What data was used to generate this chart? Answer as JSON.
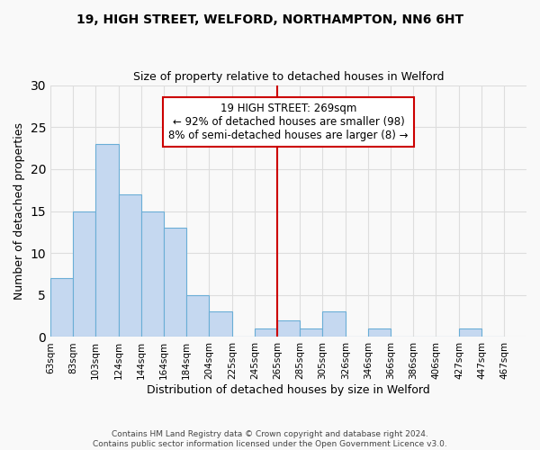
{
  "title1": "19, HIGH STREET, WELFORD, NORTHAMPTON, NN6 6HT",
  "title2": "Size of property relative to detached houses in Welford",
  "xlabel": "Distribution of detached houses by size in Welford",
  "ylabel": "Number of detached properties",
  "footer1": "Contains HM Land Registry data © Crown copyright and database right 2024.",
  "footer2": "Contains public sector information licensed under the Open Government Licence v3.0.",
  "bin_labels": [
    "63sqm",
    "83sqm",
    "103sqm",
    "124sqm",
    "144sqm",
    "164sqm",
    "184sqm",
    "204sqm",
    "225sqm",
    "245sqm",
    "265sqm",
    "285sqm",
    "305sqm",
    "326sqm",
    "346sqm",
    "366sqm",
    "386sqm",
    "406sqm",
    "427sqm",
    "447sqm",
    "467sqm"
  ],
  "bin_edges": [
    63,
    83,
    103,
    124,
    144,
    164,
    184,
    204,
    225,
    245,
    265,
    285,
    305,
    326,
    346,
    366,
    386,
    406,
    427,
    447,
    467
  ],
  "bar_heights": [
    7,
    15,
    23,
    17,
    15,
    13,
    5,
    3,
    0,
    1,
    2,
    1,
    3,
    0,
    1,
    0,
    0,
    0,
    1,
    0
  ],
  "bar_color": "#c5d8f0",
  "bar_edge_color": "#6aaed6",
  "vline_x": 265,
  "vline_color": "#cc0000",
  "ylim": [
    0,
    30
  ],
  "yticks": [
    0,
    5,
    10,
    15,
    20,
    25,
    30
  ],
  "annotation_title": "19 HIGH STREET: 269sqm",
  "annotation_line1": "← 92% of detached houses are smaller (98)",
  "annotation_line2": "8% of semi-detached houses are larger (8) →",
  "annotation_box_color": "#ffffff",
  "annotation_box_edge": "#cc0000",
  "grid_color": "#dddddd",
  "background_color": "#f9f9f9"
}
